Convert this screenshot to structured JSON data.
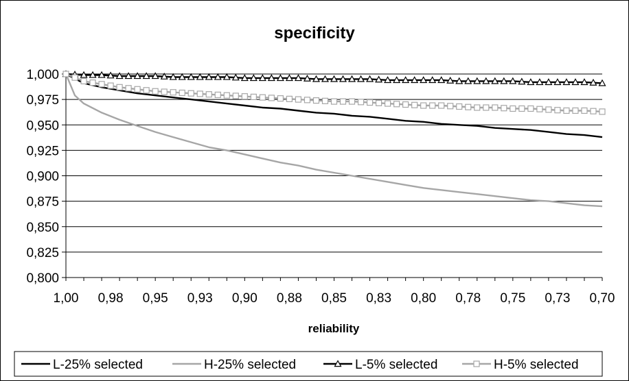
{
  "chart_data": {
    "type": "line",
    "title": "specificity",
    "xlabel": "reliability",
    "ylabel": "",
    "x_reversed": true,
    "xlim": [
      0.7,
      1.0
    ],
    "ylim": [
      0.8,
      1.0
    ],
    "x_tick_labels": [
      "1,00",
      "0,98",
      "0,95",
      "0,93",
      "0,90",
      "0,88",
      "0,85",
      "0,83",
      "0,80",
      "0,78",
      "0,75",
      "0,73",
      "0,70"
    ],
    "y_tick_labels": [
      "0,800",
      "0,825",
      "0,850",
      "0,875",
      "0,900",
      "0,925",
      "0,950",
      "0,975",
      "1,000"
    ],
    "grid": "horizontal",
    "legend_position": "bottom",
    "series": [
      {
        "name": "L-25% selected",
        "color": "#000000",
        "marker": "none",
        "x": [
          1.0,
          0.99,
          0.98,
          0.97,
          0.96,
          0.95,
          0.94,
          0.93,
          0.92,
          0.91,
          0.9,
          0.89,
          0.88,
          0.87,
          0.86,
          0.85,
          0.84,
          0.83,
          0.82,
          0.81,
          0.8,
          0.79,
          0.78,
          0.77,
          0.76,
          0.75,
          0.74,
          0.73,
          0.72,
          0.71,
          0.7
        ],
        "values": [
          1.0,
          0.991,
          0.987,
          0.984,
          0.981,
          0.979,
          0.977,
          0.975,
          0.973,
          0.971,
          0.969,
          0.967,
          0.966,
          0.964,
          0.962,
          0.961,
          0.959,
          0.958,
          0.956,
          0.954,
          0.953,
          0.951,
          0.95,
          0.949,
          0.947,
          0.946,
          0.945,
          0.943,
          0.941,
          0.94,
          0.938
        ]
      },
      {
        "name": "H-25% selected",
        "color": "#a6a6a6",
        "marker": "none",
        "x": [
          1.0,
          0.995,
          0.99,
          0.98,
          0.97,
          0.96,
          0.95,
          0.94,
          0.93,
          0.92,
          0.91,
          0.9,
          0.89,
          0.88,
          0.87,
          0.86,
          0.85,
          0.84,
          0.83,
          0.82,
          0.81,
          0.8,
          0.79,
          0.78,
          0.77,
          0.76,
          0.75,
          0.74,
          0.73,
          0.72,
          0.71,
          0.7
        ],
        "values": [
          1.0,
          0.979,
          0.971,
          0.962,
          0.955,
          0.949,
          0.943,
          0.938,
          0.933,
          0.928,
          0.925,
          0.921,
          0.917,
          0.913,
          0.91,
          0.906,
          0.903,
          0.9,
          0.897,
          0.894,
          0.891,
          0.888,
          0.886,
          0.884,
          0.882,
          0.88,
          0.878,
          0.876,
          0.875,
          0.873,
          0.871,
          0.87
        ]
      },
      {
        "name": "L-5% selected",
        "color": "#000000",
        "marker": "triangle",
        "x": [
          1.0,
          0.99,
          0.98,
          0.97,
          0.96,
          0.95,
          0.94,
          0.93,
          0.92,
          0.91,
          0.9,
          0.89,
          0.88,
          0.87,
          0.86,
          0.85,
          0.84,
          0.83,
          0.82,
          0.81,
          0.8,
          0.79,
          0.78,
          0.77,
          0.76,
          0.75,
          0.74,
          0.73,
          0.72,
          0.71,
          0.7
        ],
        "values": [
          1.0,
          0.999,
          0.999,
          0.998,
          0.998,
          0.998,
          0.997,
          0.997,
          0.997,
          0.997,
          0.996,
          0.996,
          0.996,
          0.996,
          0.995,
          0.995,
          0.995,
          0.995,
          0.994,
          0.994,
          0.994,
          0.994,
          0.993,
          0.993,
          0.993,
          0.993,
          0.992,
          0.992,
          0.992,
          0.992,
          0.991
        ]
      },
      {
        "name": "H-5% selected",
        "color": "#a6a6a6",
        "marker": "square",
        "x": [
          1.0,
          0.99,
          0.98,
          0.97,
          0.96,
          0.95,
          0.94,
          0.93,
          0.92,
          0.91,
          0.9,
          0.89,
          0.88,
          0.87,
          0.86,
          0.85,
          0.84,
          0.83,
          0.82,
          0.81,
          0.8,
          0.79,
          0.78,
          0.77,
          0.76,
          0.75,
          0.74,
          0.73,
          0.72,
          0.71,
          0.7
        ],
        "values": [
          1.0,
          0.993,
          0.99,
          0.987,
          0.985,
          0.983,
          0.982,
          0.981,
          0.98,
          0.979,
          0.978,
          0.977,
          0.976,
          0.975,
          0.974,
          0.973,
          0.973,
          0.972,
          0.971,
          0.97,
          0.969,
          0.969,
          0.968,
          0.967,
          0.967,
          0.966,
          0.966,
          0.965,
          0.964,
          0.964,
          0.963
        ]
      }
    ]
  }
}
